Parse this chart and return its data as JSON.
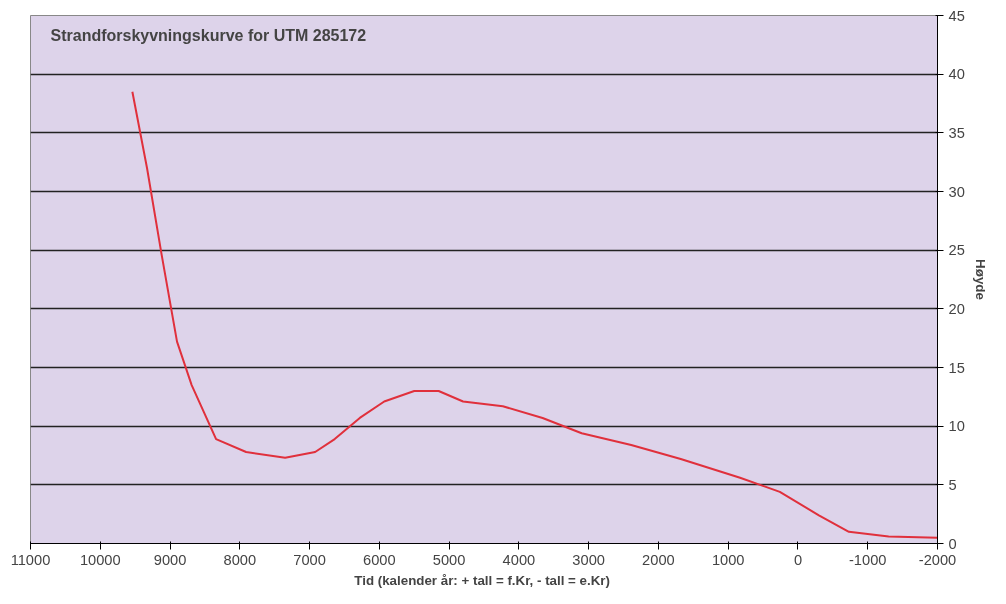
{
  "chart_data": {
    "type": "line",
    "title": "Strandforskyvningskurve for UTM  285172",
    "xlabel": "Tid (kalender år:  + tall = f.Kr, - tall = e.Kr)",
    "ylabel": "Høyde",
    "x": [
      9540,
      9330,
      9120,
      8900,
      8690,
      8340,
      7910,
      7350,
      6920,
      6640,
      6280,
      5930,
      5500,
      5150,
      4800,
      4230,
      3660,
      3100,
      2390,
      1680,
      830,
      260,
      -300,
      -730,
      -1300,
      -2000
    ],
    "series": [
      {
        "color": "#e0303c",
        "values": [
          38.5,
          32,
          24.6,
          17.2,
          13.5,
          8.9,
          7.8,
          7.3,
          7.8,
          8.9,
          10.7,
          12.1,
          13,
          13,
          12.1,
          11.7,
          10.7,
          9.4,
          8.4,
          7.2,
          5.6,
          4.4,
          2.4,
          1,
          0.6,
          0.5
        ]
      }
    ],
    "xlim": [
      11000,
      -2000
    ],
    "xticks": [
      11000,
      10000,
      9000,
      8000,
      7000,
      6000,
      5000,
      4000,
      3000,
      2000,
      1000,
      0,
      -1000,
      -2000
    ],
    "ylim": [
      0,
      45
    ],
    "yticks": [
      0,
      5,
      10,
      15,
      20,
      25,
      30,
      35,
      40,
      45
    ],
    "grid": "y",
    "marker": "none",
    "line_style": "solid"
  }
}
